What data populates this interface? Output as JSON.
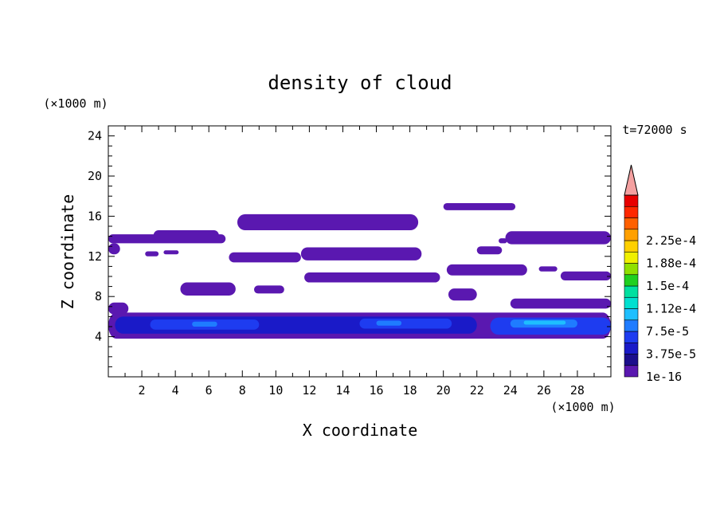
{
  "chart_data": {
    "type": "heatmap",
    "title": "density of cloud",
    "xlabel": "X coordinate",
    "ylabel": "Z coordinate",
    "x_unit": "(×1000 m)",
    "y_unit": "(×1000 m)",
    "time_label": "t=72000 s",
    "xlim": [
      0,
      30
    ],
    "ylim": [
      0,
      25
    ],
    "x_ticks": [
      2,
      4,
      6,
      8,
      10,
      12,
      14,
      16,
      18,
      20,
      22,
      24,
      26,
      28
    ],
    "y_ticks": [
      4,
      8,
      12,
      16,
      20,
      24
    ],
    "colorbar": {
      "labels": [
        "1e-16",
        "3.75e-5",
        "7.5e-5",
        "1.12e-4",
        "1.5e-4",
        "1.88e-4",
        "2.25e-4"
      ],
      "colors": [
        "#5a18b0",
        "#1c0e8c",
        "#1a1ac8",
        "#1e3cf0",
        "#1f7cff",
        "#1ebfff",
        "#00e0d0",
        "#00e0a0",
        "#20d020",
        "#90e000",
        "#f0f000",
        "#ffd000",
        "#ffa000",
        "#ff6000",
        "#ff2800",
        "#e80000"
      ],
      "overflow_color": "#f4a0a0"
    },
    "regions": [
      {
        "level": 0,
        "x": [
          0,
          7
        ],
        "z": [
          13.3,
          14.2
        ]
      },
      {
        "level": 0,
        "x": [
          0,
          0.7
        ],
        "z": [
          12.2,
          13.3
        ]
      },
      {
        "level": 0,
        "x": [
          2.7,
          6.6
        ],
        "z": [
          13.6,
          14.6
        ]
      },
      {
        "level": 0,
        "x": [
          7.7,
          18.5
        ],
        "z": [
          14.6,
          16.2
        ]
      },
      {
        "level": 0,
        "x": [
          3.3,
          4.2
        ],
        "z": [
          12.2,
          12.6
        ]
      },
      {
        "level": 0,
        "x": [
          7.2,
          11.5
        ],
        "z": [
          11.4,
          12.4
        ]
      },
      {
        "level": 0,
        "x": [
          11.5,
          18.7
        ],
        "z": [
          11.6,
          12.9
        ]
      },
      {
        "level": 0,
        "x": [
          2.2,
          3.0
        ],
        "z": [
          12.0,
          12.5
        ]
      },
      {
        "level": 0,
        "x": [
          4.3,
          7.6
        ],
        "z": [
          8.1,
          9.4
        ]
      },
      {
        "level": 0,
        "x": [
          8.7,
          10.5
        ],
        "z": [
          8.3,
          9.1
        ]
      },
      {
        "level": 0,
        "x": [
          11.7,
          19.8
        ],
        "z": [
          9.4,
          10.4
        ]
      },
      {
        "level": 0,
        "x": [
          20.0,
          24.3
        ],
        "z": [
          16.6,
          17.3
        ]
      },
      {
        "level": 0,
        "x": [
          20.2,
          25.0
        ],
        "z": [
          10.1,
          11.2
        ]
      },
      {
        "level": 0,
        "x": [
          22.0,
          23.5
        ],
        "z": [
          12.2,
          13.0
        ]
      },
      {
        "level": 0,
        "x": [
          23.3,
          23.8
        ],
        "z": [
          13.3,
          13.8
        ]
      },
      {
        "level": 0,
        "x": [
          23.7,
          30
        ],
        "z": [
          13.2,
          14.5
        ]
      },
      {
        "level": 0,
        "x": [
          25.7,
          26.8
        ],
        "z": [
          10.5,
          11.0
        ]
      },
      {
        "level": 0,
        "x": [
          27.0,
          30
        ],
        "z": [
          9.6,
          10.5
        ]
      },
      {
        "level": 0,
        "x": [
          20.3,
          22.0
        ],
        "z": [
          7.6,
          8.8
        ]
      },
      {
        "level": 0,
        "x": [
          24.0,
          30
        ],
        "z": [
          6.8,
          7.8
        ]
      },
      {
        "level": 0,
        "x": [
          0,
          1.2
        ],
        "z": [
          6.2,
          7.4
        ]
      },
      {
        "level": 0,
        "x": [
          0,
          30
        ],
        "z": [
          3.8,
          6.4
        ]
      },
      {
        "level": 2,
        "x": [
          0.4,
          22.0
        ],
        "z": [
          4.3,
          6.0
        ]
      },
      {
        "level": 3,
        "x": [
          2.5,
          9.0
        ],
        "z": [
          4.7,
          5.7
        ]
      },
      {
        "level": 3,
        "x": [
          15.0,
          20.5
        ],
        "z": [
          4.8,
          5.8
        ]
      },
      {
        "level": 3,
        "x": [
          22.8,
          30
        ],
        "z": [
          4.2,
          5.9
        ]
      },
      {
        "level": 4,
        "x": [
          24.0,
          28.0
        ],
        "z": [
          4.9,
          5.7
        ]
      },
      {
        "level": 5,
        "x": [
          24.8,
          27.3
        ],
        "z": [
          5.2,
          5.6
        ]
      },
      {
        "level": 4,
        "x": [
          16.0,
          17.5
        ],
        "z": [
          5.1,
          5.6
        ]
      },
      {
        "level": 4,
        "x": [
          5.0,
          6.5
        ],
        "z": [
          5.0,
          5.5
        ]
      }
    ]
  }
}
